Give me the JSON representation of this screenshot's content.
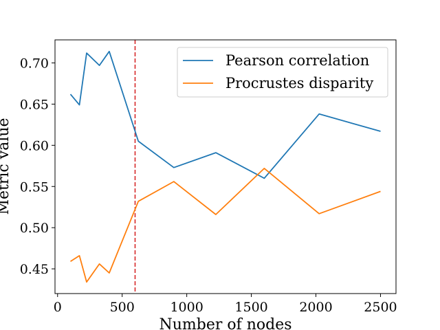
{
  "chart_data": {
    "type": "line",
    "title": "",
    "xlabel": "Number of nodes",
    "ylabel": "Metric value",
    "xlim": [
      -20,
      2620
    ],
    "ylim": [
      0.42,
      0.728
    ],
    "xticks": [
      0,
      500,
      1000,
      1500,
      2000,
      2500
    ],
    "yticks": [
      0.45,
      0.5,
      0.55,
      0.6,
      0.65,
      0.7
    ],
    "xtick_labels": [
      "0",
      "500",
      "1000",
      "1500",
      "2000",
      "2500"
    ],
    "ytick_labels": [
      "0.45",
      "0.50",
      "0.55",
      "0.60",
      "0.65",
      "0.70"
    ],
    "grid": false,
    "legend_position": "upper right",
    "vline": {
      "x": 600,
      "color": "#d62728",
      "style": "dashed"
    },
    "series": [
      {
        "name": "Pearson correlation",
        "color": "#1f77b4",
        "x": [
          100,
          169,
          225,
          324,
          400,
          625,
          900,
          1225,
          1600,
          2025,
          2500
        ],
        "y": [
          0.662,
          0.649,
          0.712,
          0.697,
          0.714,
          0.605,
          0.573,
          0.591,
          0.56,
          0.638,
          0.617
        ]
      },
      {
        "name": "Procrustes disparity",
        "color": "#ff7f0e",
        "x": [
          100,
          169,
          225,
          324,
          400,
          625,
          900,
          1225,
          1600,
          2025,
          2500
        ],
        "y": [
          0.459,
          0.466,
          0.434,
          0.456,
          0.445,
          0.532,
          0.556,
          0.516,
          0.572,
          0.517,
          0.544
        ]
      }
    ]
  }
}
